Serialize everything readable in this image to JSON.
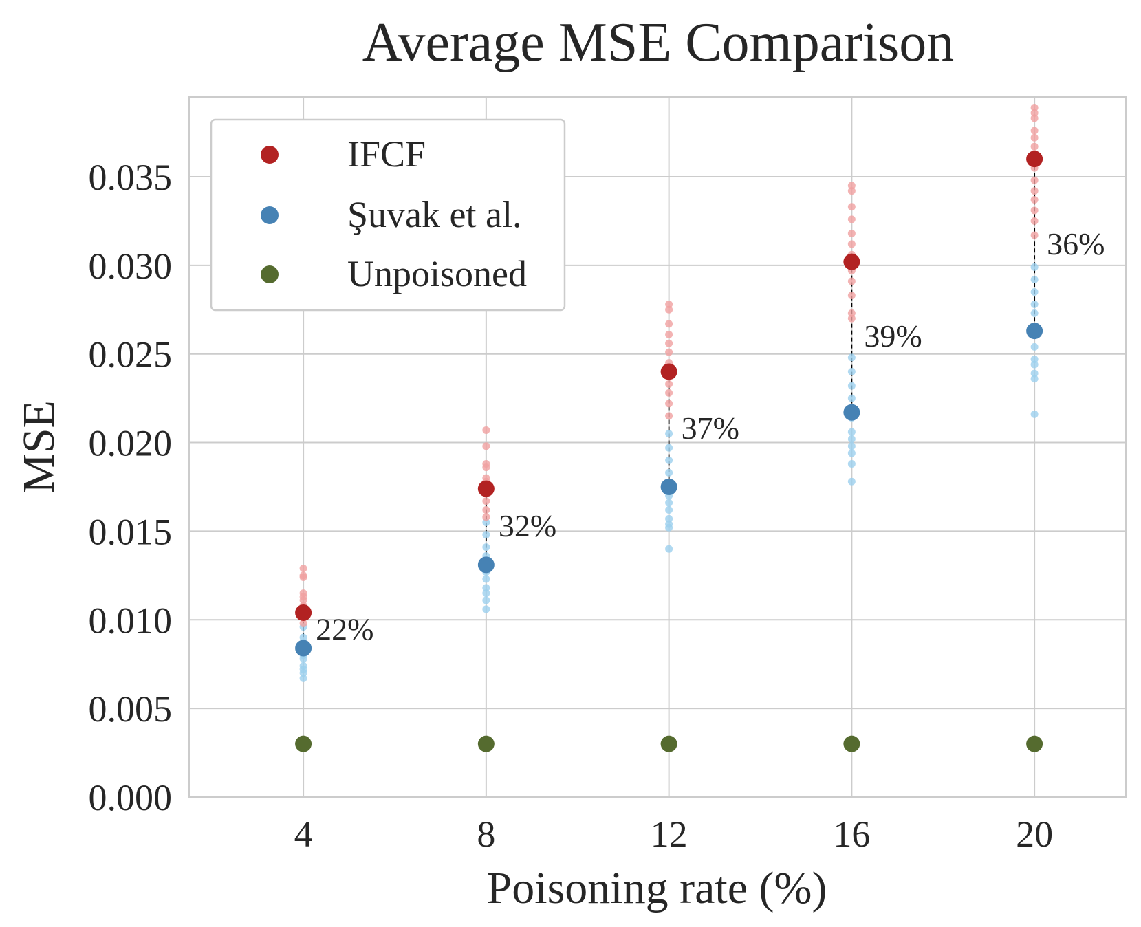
{
  "chart_data": {
    "type": "scatter",
    "title": "Average MSE Comparison",
    "xlabel": "Poisoning rate (%)",
    "ylabel": "MSE",
    "x": [
      4,
      8,
      12,
      16,
      20
    ],
    "xticks": [
      "4",
      "8",
      "12",
      "16",
      "20"
    ],
    "xlim": [
      1.5,
      22
    ],
    "ylim": [
      0,
      0.0395
    ],
    "yticks": [
      "0.000",
      "0.005",
      "0.010",
      "0.015",
      "0.020",
      "0.025",
      "0.030",
      "0.035"
    ],
    "yticks_values": [
      0,
      0.005,
      0.01,
      0.015,
      0.02,
      0.025,
      0.03,
      0.035
    ],
    "grid": true,
    "legend_position": "top-left",
    "series": [
      {
        "name": "IFCF",
        "color": "#b22222",
        "sample_color": "#f0a0a0",
        "means": [
          0.0104,
          0.0174,
          0.024,
          0.0302,
          0.036
        ],
        "samples": [
          [
            0.0129,
            0.0125,
            0.0124,
            0.0115,
            0.0113,
            0.0111,
            0.0108,
            0.0106,
            0.0101,
            0.0098
          ],
          [
            0.0207,
            0.0198,
            0.0188,
            0.0186,
            0.018,
            0.0178,
            0.0172,
            0.0167,
            0.0162,
            0.0158
          ],
          [
            0.0278,
            0.0275,
            0.0267,
            0.0261,
            0.0256,
            0.0251,
            0.0245,
            0.0238,
            0.0233,
            0.0228,
            0.0222,
            0.0215
          ],
          [
            0.0345,
            0.0342,
            0.0333,
            0.0326,
            0.0318,
            0.0312,
            0.0306,
            0.0297,
            0.0291,
            0.0283,
            0.0273,
            0.027
          ],
          [
            0.0389,
            0.0386,
            0.0383,
            0.0376,
            0.0372,
            0.0367,
            0.0363,
            0.0355,
            0.0348,
            0.0342,
            0.0337,
            0.0331,
            0.0325,
            0.0317
          ]
        ]
      },
      {
        "name": "Şuvak et al.",
        "color": "#4682b4",
        "sample_color": "#9ccfee",
        "means": [
          0.0084,
          0.0131,
          0.0175,
          0.0217,
          0.0263
        ],
        "samples": [
          [
            0.0104,
            0.0096,
            0.009,
            0.0087,
            0.008,
            0.0078,
            0.0074,
            0.0072,
            0.007,
            0.0067
          ],
          [
            0.0155,
            0.0148,
            0.0141,
            0.0136,
            0.0127,
            0.0123,
            0.0118,
            0.0115,
            0.0111,
            0.0106
          ],
          [
            0.0205,
            0.0197,
            0.019,
            0.0183,
            0.017,
            0.0166,
            0.0162,
            0.0157,
            0.0154,
            0.0152,
            0.014
          ],
          [
            0.0248,
            0.024,
            0.0232,
            0.0225,
            0.0214,
            0.0206,
            0.0202,
            0.0198,
            0.0194,
            0.0188,
            0.0178
          ],
          [
            0.0299,
            0.0292,
            0.0285,
            0.0278,
            0.0273,
            0.0254,
            0.0247,
            0.0244,
            0.0239,
            0.0236,
            0.0216
          ]
        ]
      },
      {
        "name": "Unpoisoned",
        "color": "#556b2f",
        "means": [
          0.003,
          0.003,
          0.003,
          0.003,
          0.003
        ]
      }
    ],
    "annotations": [
      "22%",
      "32%",
      "37%",
      "39%",
      "36%"
    ]
  }
}
